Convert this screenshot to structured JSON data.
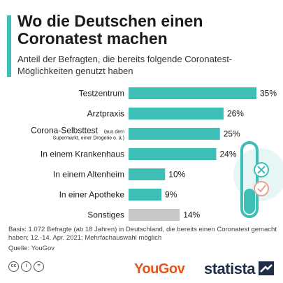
{
  "title": "Wo die Deutschen einen Coronatest machen",
  "subtitle": "Anteil der Befragten, die bereits folgende Coronatest-Möglichkeiten genutzt haben",
  "footnote": "Basis: 1.072 Befragte (ab 18 Jahren) in Deutschland, die bereits einen Coronatest gemacht haben; 12.-14. Apr. 2021; Mehrfachauswahl möglich",
  "source": "Quelle: YouGov",
  "brand": {
    "yougov": "YouGov",
    "statista": "statista"
  },
  "colors": {
    "accent": "#3dbfb7",
    "other": "#c8c8c8",
    "yougov": "#e8541b",
    "statista": "#1e2d48"
  },
  "chart_data": {
    "type": "bar",
    "orientation": "horizontal",
    "categories": [
      "Testzentrum",
      "Arztpraxis",
      "Corona-Selbsttest",
      "In einem Krankenhaus",
      "In einem Altenheim",
      "In einer Apotheke",
      "Sonstiges"
    ],
    "category_notes": [
      "",
      "",
      "(aus dem Supermarkt, einer Drogerie o. ä.)",
      "",
      "",
      "",
      ""
    ],
    "values": [
      35,
      26,
      25,
      24,
      10,
      9,
      14
    ],
    "value_labels": [
      "35%",
      "26%",
      "25%",
      "24%",
      "10%",
      "9%",
      "14%"
    ],
    "highlight": [
      true,
      true,
      true,
      true,
      true,
      true,
      false
    ],
    "xlim": [
      0,
      35
    ],
    "grid": false
  }
}
